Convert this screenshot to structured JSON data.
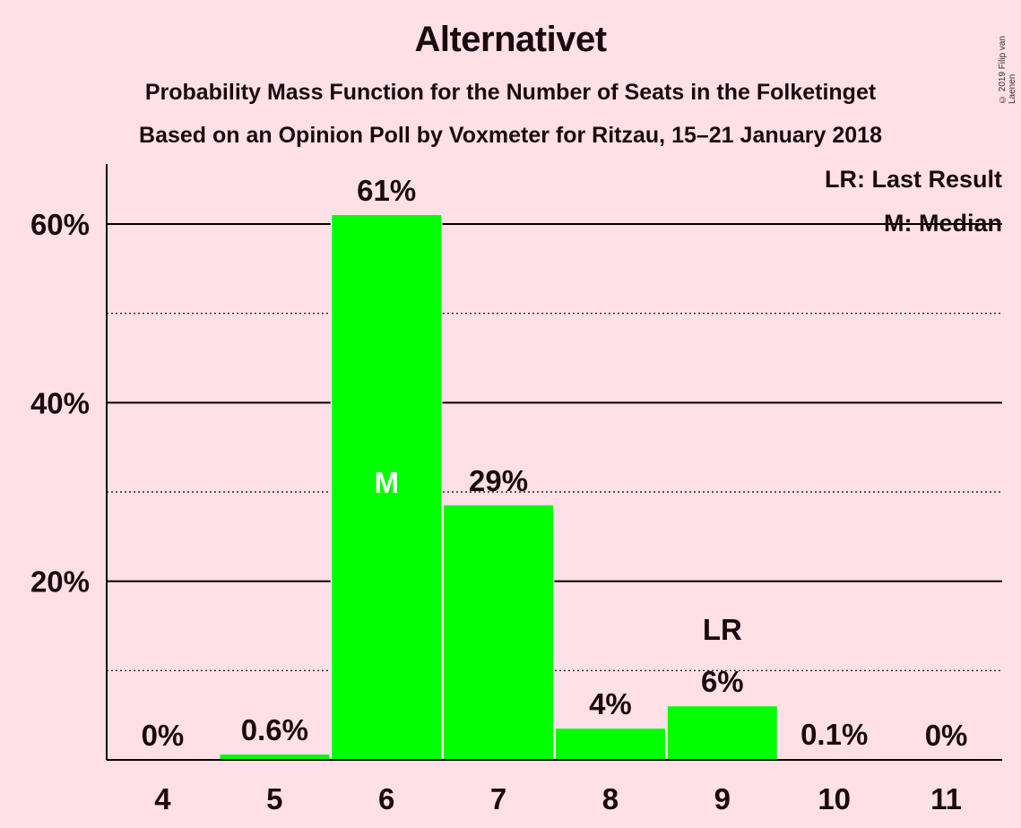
{
  "title": "Alternativet",
  "subtitle": "Probability Mass Function for the Number of Seats in the Folketinget",
  "subtitle2": "Based on an Opinion Poll by Voxmeter for Ritzau, 15–21 January 2018",
  "copyright": "© 2019 Filip van Laenen",
  "legend": {
    "lr": "LR: Last Result",
    "m": "M: Median"
  },
  "colors": {
    "background": "#FFE0E6",
    "bar": "#00FF00",
    "text": "#1a0a10"
  },
  "chart_data": {
    "type": "bar",
    "categories": [
      "4",
      "5",
      "6",
      "7",
      "8",
      "9",
      "10",
      "11"
    ],
    "values": [
      0,
      0.6,
      61,
      28.5,
      3.5,
      6,
      0.1,
      0
    ],
    "data_labels": [
      "0%",
      "0.6%",
      "61%",
      "29%",
      "4%",
      "6%",
      "0.1%",
      "0%"
    ],
    "median_category": "6",
    "median_marker": "M",
    "last_result_category": "9",
    "last_result_marker": "LR",
    "ylim": [
      0,
      67
    ],
    "yticks": [
      {
        "value": 20,
        "label": "20%"
      },
      {
        "value": 40,
        "label": "40%"
      },
      {
        "value": 60,
        "label": "60%"
      }
    ],
    "minor_gridlines": [
      10,
      30,
      50
    ],
    "grid": true,
    "legend_placement": "top-right"
  }
}
